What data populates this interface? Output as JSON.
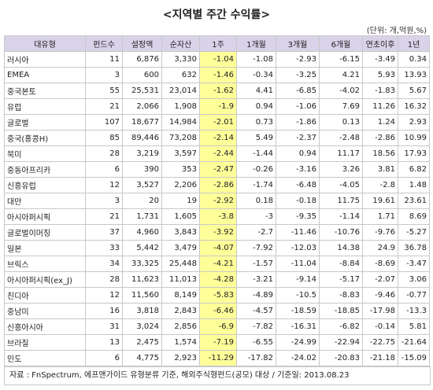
{
  "title": "<지역별 주간 수익률>",
  "unit": "(단위: 개,억원,%)",
  "table": {
    "header": [
      "대유형",
      "펀드수",
      "설정액",
      "순자산",
      "1주",
      "1개월",
      "3개월",
      "6개월",
      "연초이후",
      "1년"
    ],
    "rows": [
      [
        "러시아",
        "11",
        "6,876",
        "3,330",
        "-1.04",
        "-1.08",
        "-2.93",
        "-6.15",
        "-3.49",
        "0.34"
      ],
      [
        "EMEA",
        "3",
        "600",
        "632",
        "-1.46",
        "-0.34",
        "-3.25",
        "4.21",
        "5.93",
        "13.93"
      ],
      [
        "중국본토",
        "55",
        "25,531",
        "23,014",
        "-1.62",
        "4.41",
        "-6.85",
        "-4.02",
        "-1.83",
        "5.67"
      ],
      [
        "유럽",
        "21",
        "2,066",
        "1,908",
        "-1.9",
        "0.94",
        "-1.06",
        "7.69",
        "11.26",
        "16.32"
      ],
      [
        "글로벌",
        "107",
        "18,677",
        "14,984",
        "-2.01",
        "0.73",
        "-1.86",
        "0.13",
        "1.24",
        "2.93"
      ],
      [
        "중국(홍콩H)",
        "85",
        "89,446",
        "73,208",
        "-2.14",
        "5.49",
        "-2.37",
        "-2.48",
        "-2.86",
        "10.99"
      ],
      [
        "북미",
        "28",
        "3,219",
        "3,597",
        "-2.44",
        "-1.44",
        "0.94",
        "11.17",
        "18.56",
        "17.93"
      ],
      [
        "중동아프리카",
        "6",
        "390",
        "353",
        "-2.47",
        "-0.26",
        "-3.16",
        "3.26",
        "3.81",
        "6.82"
      ],
      [
        "신흥유럽",
        "12",
        "3,527",
        "2,206",
        "-2.86",
        "-1.74",
        "-6.48",
        "-4.05",
        "-2.8",
        "1.48"
      ],
      [
        "대만",
        "3",
        "20",
        "19",
        "-2.92",
        "0.18",
        "-0.18",
        "11.75",
        "19.61",
        "23.61"
      ],
      [
        "아시아퍼시픽",
        "21",
        "1,731",
        "1,605",
        "-3.8",
        "-3",
        "-9.35",
        "-1.14",
        "1.71",
        "8.69"
      ],
      [
        "글로벌이머징",
        "37",
        "4,960",
        "3,843",
        "-3.92",
        "-2.7",
        "-11.46",
        "-10.76",
        "-9.76",
        "-5.27"
      ],
      [
        "일본",
        "33",
        "5,442",
        "3,479",
        "-4.07",
        "-7.92",
        "-12.03",
        "14.38",
        "24.9",
        "36.78"
      ],
      [
        "브릭스",
        "34",
        "33,325",
        "25,448",
        "-4.21",
        "-1.57",
        "-11.04",
        "-8.84",
        "-8.69",
        "-3.47"
      ],
      [
        "아시아퍼시픽(ex_J)",
        "28",
        "11,623",
        "11,013",
        "-4.28",
        "-3.21",
        "-9.14",
        "-5.17",
        "-2.07",
        "3.06"
      ],
      [
        "친디아",
        "12",
        "11,560",
        "8,149",
        "-5.83",
        "-4.89",
        "-10.5",
        "-8.83",
        "-9.46",
        "-0.77"
      ],
      [
        "중남미",
        "16",
        "3,818",
        "2,843",
        "-6.46",
        "-4.57",
        "-18.59",
        "-18.85",
        "-17.98",
        "-13.3"
      ],
      [
        "신흥아시아",
        "31",
        "3,024",
        "2,856",
        "-6.9",
        "-7.82",
        "-16.31",
        "-6.82",
        "-0.14",
        "5.81"
      ],
      [
        "브라질",
        "13",
        "2,475",
        "1,574",
        "-7.19",
        "-6.55",
        "-24.99",
        "-22.94",
        "-22.75",
        "-21.64"
      ],
      [
        "인도",
        "6",
        "4,775",
        "2,923",
        "-11.29",
        "-17.82",
        "-24.02",
        "-20.83",
        "-21.18",
        "-15.09"
      ]
    ]
  },
  "footer": "자료 : FnSpectrum, 에프앤가이드 유형분류 기준, 해외주식형펀드(공모) 대상 / 기준일: 2013.08.23"
}
